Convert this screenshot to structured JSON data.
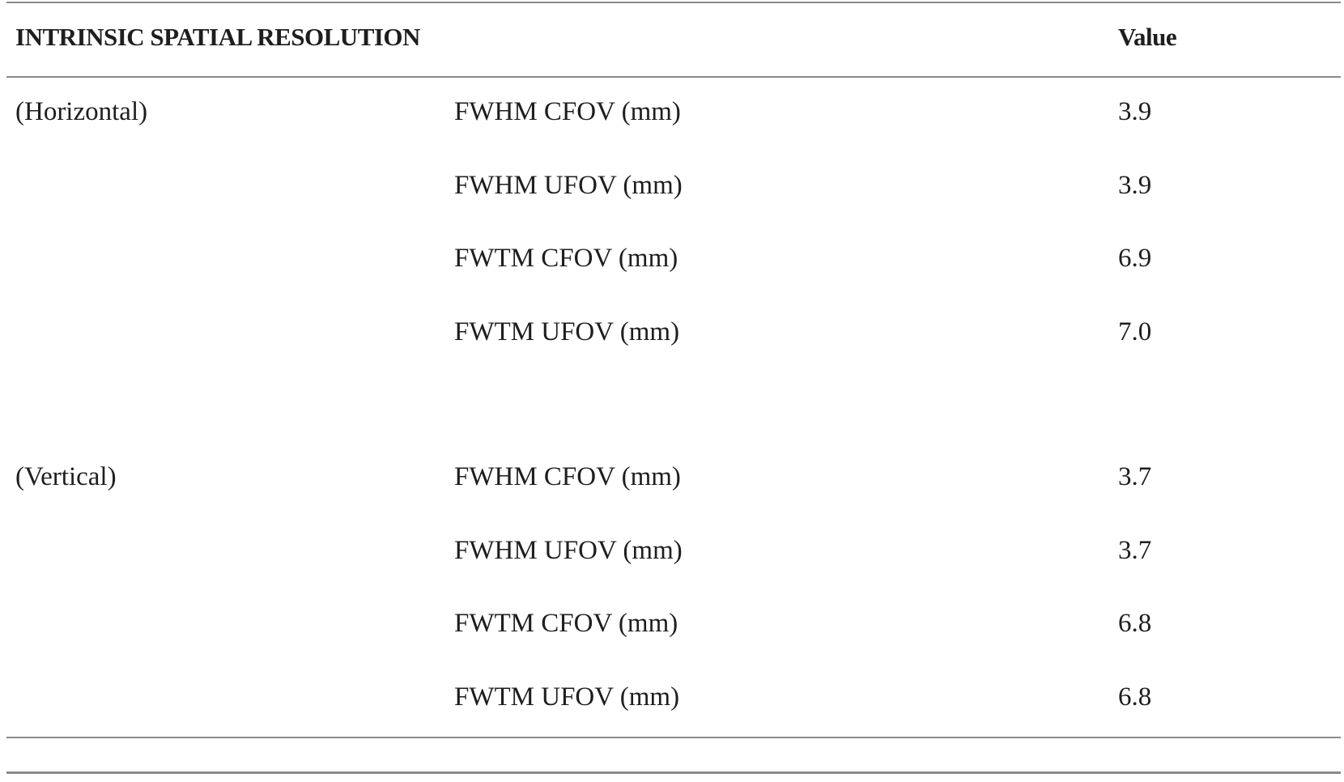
{
  "table": {
    "header": {
      "parameter": "INTRINSIC SPATIAL RESOLUTION",
      "value": "Value"
    },
    "groups": [
      {
        "label": "(Horizontal)",
        "rows": [
          {
            "metric": "FWHM CFOV (mm)",
            "value": "3.9"
          },
          {
            "metric": "FWHM UFOV (mm)",
            "value": "3.9"
          },
          {
            "metric": "FWTM CFOV (mm)",
            "value": "6.9"
          },
          {
            "metric": "FWTM UFOV (mm)",
            "value": "7.0"
          }
        ]
      },
      {
        "label": "(Vertical)",
        "rows": [
          {
            "metric": "FWHM CFOV (mm)",
            "value": "3.7"
          },
          {
            "metric": "FWHM UFOV (mm)",
            "value": "3.7"
          },
          {
            "metric": "FWTM CFOV (mm)",
            "value": "6.8"
          },
          {
            "metric": "FWTM UFOV (mm)",
            "value": "6.8"
          }
        ]
      }
    ]
  }
}
